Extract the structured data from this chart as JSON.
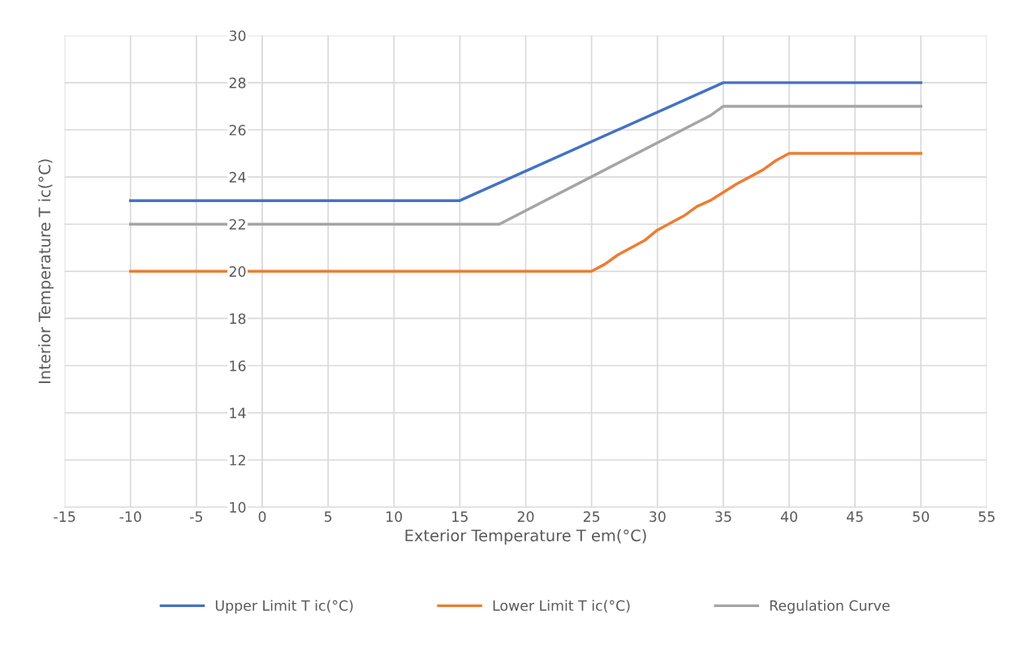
{
  "chart_data": {
    "type": "line",
    "xlabel": "Exterior Temperature T em(°C)",
    "ylabel": "Interior Temperature T ic(°C)",
    "xlim": [
      -15,
      55
    ],
    "xticks": [
      -15,
      -10,
      -5,
      0,
      5,
      10,
      15,
      20,
      25,
      30,
      35,
      40,
      45,
      50,
      55
    ],
    "ylim": [
      10,
      30
    ],
    "yticks": [
      10,
      12,
      14,
      16,
      18,
      20,
      22,
      24,
      26,
      28,
      30
    ],
    "grid": true,
    "legend": "bottom",
    "marker": "none",
    "line_style": "solid",
    "series": [
      {
        "name": "Upper Limit T ic(°C)",
        "color": "#4472c4",
        "x": [
          -10,
          15,
          35,
          50
        ],
        "values": [
          23,
          23,
          28,
          28
        ]
      },
      {
        "name": "Lower Limit T ic(°C)",
        "color": "#ed7d31",
        "x": [
          -10,
          25,
          26,
          27,
          28,
          29,
          30,
          31,
          32,
          33,
          34,
          35,
          36,
          37,
          38,
          39,
          40,
          50
        ],
        "values": [
          20,
          20,
          20.3,
          20.7,
          21.0,
          21.3,
          21.75,
          22.05,
          22.35,
          22.75,
          23.0,
          23.35,
          23.7,
          24.0,
          24.3,
          24.7,
          25,
          25
        ]
      },
      {
        "name": "Regulation Curve",
        "color": "#a5a5a5",
        "x": [
          -10,
          18,
          34,
          35,
          50
        ],
        "values": [
          22,
          22,
          26.6,
          27,
          27
        ]
      }
    ]
  }
}
